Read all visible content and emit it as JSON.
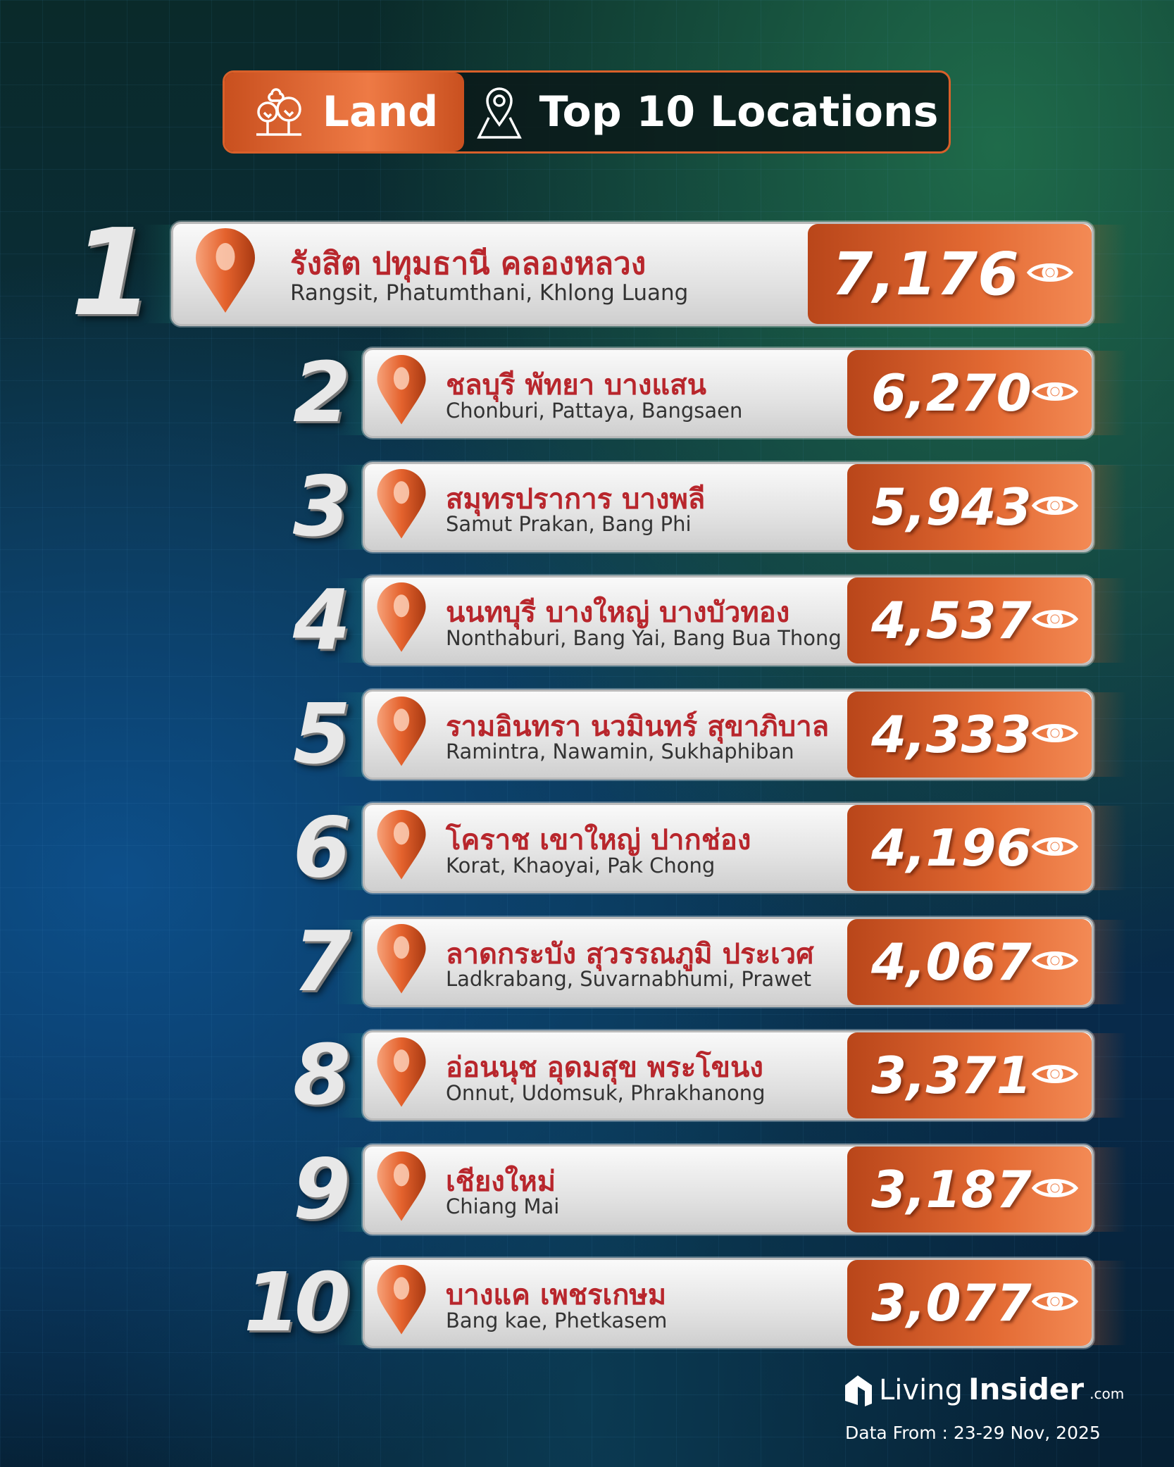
{
  "header": {
    "category": "Land",
    "title": "Top 10 Locations",
    "category_icon": "trees-icon",
    "title_icon": "map-pin-icon"
  },
  "colors": {
    "accent": "#e36a33",
    "thai_text": "#b8262c",
    "english_text": "#333333"
  },
  "count_icon": "eye-icon",
  "locations": [
    {
      "rank": "1",
      "thai": "รังสิต ปทุมธานี คลองหลวง",
      "english": "Rangsit, Phatumthani, Khlong Luang",
      "views": "7,176"
    },
    {
      "rank": "2",
      "thai": "ชลบุรี พัทยา บางแสน",
      "english": "Chonburi, Pattaya, Bangsaen",
      "views": "6,270"
    },
    {
      "rank": "3",
      "thai": "สมุทรปราการ บางพลี",
      "english": "Samut Prakan, Bang Phi",
      "views": "5,943"
    },
    {
      "rank": "4",
      "thai": "นนทบุรี บางใหญ่ บางบัวทอง",
      "english": "Nonthaburi, Bang Yai, Bang Bua Thong",
      "views": "4,537"
    },
    {
      "rank": "5",
      "thai": "รามอินทรา นวมินทร์ สุขาภิบาล",
      "english": "Ramintra, Nawamin, Sukhaphiban",
      "views": "4,333"
    },
    {
      "rank": "6",
      "thai": "โคราช เขาใหญ่ ปากช่อง",
      "english": "Korat, Khaoyai, Pak Chong",
      "views": "4,196"
    },
    {
      "rank": "7",
      "thai": "ลาดกระบัง สุวรรณภูมิ ประเวศ",
      "english": "Ladkrabang, Suvarnabhumi, Prawet",
      "views": "4,067"
    },
    {
      "rank": "8",
      "thai": "อ่อนนุช อุดมสุข พระโขนง",
      "english": "Onnut, Udomsuk, Phrakhanong",
      "views": "3,371"
    },
    {
      "rank": "9",
      "thai": "เชียงใหม่",
      "english": "Chiang Mai",
      "views": "3,187"
    },
    {
      "rank": "10",
      "thai": "บางแค เพชรเกษม",
      "english": "Bang kae, Phetkasem",
      "views": "3,077"
    }
  ],
  "footer": {
    "logo_living": "Living",
    "logo_insider": "Insider",
    "logo_com": ".com",
    "date": "Data From : 23-29 Nov, 2025"
  }
}
